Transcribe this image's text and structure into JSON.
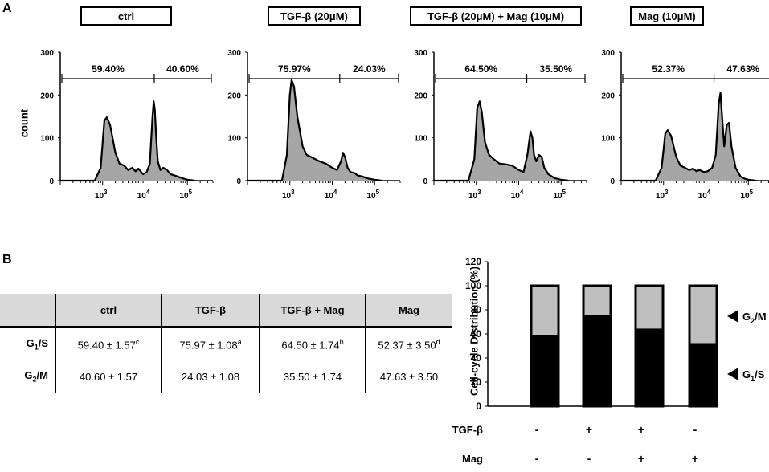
{
  "panels": {
    "a": "A",
    "b": "B"
  },
  "flow": {
    "ylabel": "count",
    "y_ticks": [
      "300",
      "200",
      "100",
      "0"
    ],
    "x_ticks": [
      "10",
      "10",
      "10"
    ],
    "x_tick_exps": [
      "3",
      "4",
      "5"
    ],
    "conditions": [
      {
        "label": "ctrl",
        "left_pct": "59.40%",
        "right_pct": "40.60%"
      },
      {
        "label": "TGF-β (20μM)",
        "left_pct": "75.97%",
        "right_pct": "24.03%"
      },
      {
        "label": "TGF-β (20μM) + Mag (10μM)",
        "left_pct": "64.50%",
        "right_pct": "35.50%"
      },
      {
        "label": "Mag (10μM)",
        "left_pct": "52.37%",
        "right_pct": "47.63%"
      }
    ]
  },
  "table": {
    "headers": [
      "ctrl",
      "TGF-β",
      "TGF-β + Mag",
      "Mag"
    ],
    "rows": [
      {
        "label_main": "G",
        "label_sub": "1",
        "label_rest": "/S",
        "cells": [
          {
            "value": "59.40 ± 1.57",
            "sup": "c"
          },
          {
            "value": "75.97 ± 1.08",
            "sup": "a"
          },
          {
            "value": "64.50 ± 1.74",
            "sup": "b"
          },
          {
            "value": "52.37 ± 3.50",
            "sup": "d"
          }
        ]
      },
      {
        "label_main": "G",
        "label_sub": "2",
        "label_rest": "/M",
        "cells": [
          {
            "value": "40.60 ± 1.57",
            "sup": ""
          },
          {
            "value": "24.03 ± 1.08",
            "sup": ""
          },
          {
            "value": "35.50 ± 1.74",
            "sup": ""
          },
          {
            "value": "47.63 ± 3.50",
            "sup": ""
          }
        ]
      }
    ]
  },
  "chart_data": [
    {
      "type": "area",
      "description_series": "flow cytometry histograms of DNA content",
      "x_scale": "log",
      "xlim": [
        100,
        400000
      ],
      "ylim": [
        0,
        300
      ],
      "ylabel": "count",
      "series": [
        {
          "name": "ctrl",
          "x": [
            100,
            650,
            900,
            1100,
            1250,
            1500,
            2000,
            2500,
            3200,
            4000,
            5000,
            6000,
            7000,
            9000,
            11000,
            13000,
            15000,
            16000,
            17000,
            18500,
            20000,
            23000,
            27000,
            33000,
            40000,
            50000,
            65000,
            80000,
            100000,
            150000
          ],
          "y": [
            0,
            0,
            30,
            140,
            148,
            130,
            65,
            40,
            35,
            25,
            30,
            22,
            28,
            15,
            20,
            40,
            150,
            185,
            165,
            95,
            45,
            25,
            30,
            25,
            15,
            12,
            8,
            5,
            2,
            0
          ]
        },
        {
          "name": "TGF-β (20μM)",
          "x": [
            100,
            650,
            850,
            1000,
            1100,
            1250,
            1500,
            2000,
            2500,
            3200,
            4000,
            5000,
            7000,
            10000,
            13000,
            16000,
            18000,
            20000,
            23000,
            27000,
            33000,
            40000,
            50000,
            70000,
            100000,
            150000
          ],
          "y": [
            0,
            0,
            60,
            200,
            235,
            220,
            150,
            80,
            60,
            55,
            50,
            45,
            40,
            30,
            25,
            45,
            65,
            55,
            30,
            20,
            18,
            12,
            10,
            5,
            2,
            0
          ]
        },
        {
          "name": "TGF-β (20μM) + Mag (10μM)",
          "x": [
            100,
            650,
            900,
            1050,
            1200,
            1350,
            1600,
            2000,
            2600,
            3500,
            5000,
            7000,
            10000,
            13000,
            16000,
            19000,
            21000,
            23000,
            26000,
            30000,
            35000,
            40000,
            50000,
            70000,
            100000,
            150000
          ],
          "y": [
            0,
            0,
            50,
            170,
            185,
            160,
            90,
            60,
            50,
            40,
            38,
            35,
            25,
            20,
            60,
            115,
            100,
            60,
            45,
            60,
            55,
            30,
            15,
            6,
            2,
            0
          ]
        },
        {
          "name": "Mag (10μM)",
          "x": [
            100,
            650,
            900,
            1100,
            1250,
            1500,
            2000,
            2500,
            3200,
            4000,
            5000,
            6000,
            7000,
            9000,
            11000,
            14000,
            17000,
            20000,
            22000,
            24000,
            27000,
            31000,
            35000,
            40000,
            50000,
            65000,
            80000,
            100000,
            150000
          ],
          "y": [
            0,
            0,
            30,
            110,
            118,
            105,
            55,
            35,
            30,
            25,
            28,
            22,
            25,
            20,
            22,
            30,
            60,
            180,
            205,
            150,
            80,
            130,
            135,
            80,
            30,
            10,
            5,
            2,
            0
          ]
        }
      ]
    },
    {
      "type": "bar",
      "stacked": true,
      "ylabel": "Cell-cycle Distribution (%)",
      "ylim": [
        0,
        120
      ],
      "y_ticks": [
        0,
        20,
        40,
        60,
        80,
        100,
        120
      ],
      "categories": [
        "ctrl",
        "TGF-β",
        "TGF-β + Mag",
        "Mag"
      ],
      "series": [
        {
          "name": "G1/S",
          "values": [
            59.4,
            75.97,
            64.5,
            52.37
          ],
          "color": "#000000"
        },
        {
          "name": "G2/M",
          "values": [
            40.6,
            24.03,
            35.5,
            47.63
          ],
          "color": "#bfbfbf"
        }
      ],
      "treatment_rows": [
        {
          "label": "TGF-β",
          "values": [
            "-",
            "+",
            "+",
            "-"
          ]
        },
        {
          "label": "Mag",
          "values": [
            "-",
            "-",
            "+",
            "+"
          ]
        }
      ],
      "legend": {
        "g2m_main": "G",
        "g2m_sub": "2",
        "g2m_rest": "/M",
        "g1s_main": "G",
        "g1s_sub": "1",
        "g1s_rest": "/S"
      }
    }
  ]
}
